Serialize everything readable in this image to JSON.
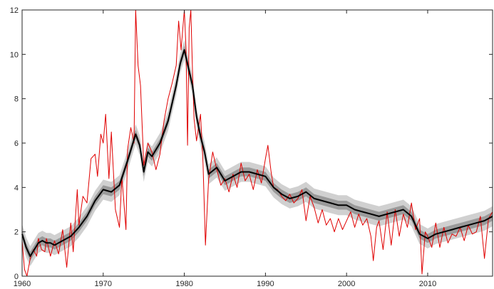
{
  "chart_data": {
    "type": "line",
    "title": "",
    "xlabel": "",
    "ylabel": "",
    "xlim": [
      1960,
      2018
    ],
    "ylim": [
      0,
      12
    ],
    "grid": false,
    "x_ticks": [
      1960,
      1970,
      1980,
      1990,
      2000,
      2010
    ],
    "y_ticks": [
      0,
      2,
      4,
      6,
      8,
      10,
      12
    ],
    "colors": {
      "raw": "#e00000",
      "trend": "#000000",
      "band_outer": "#d0d0d0",
      "band_inner": "#9a9a9a"
    },
    "series": [
      {
        "style": "trend-with-bands",
        "x": [
          1960,
          1960.5,
          1961,
          1961.5,
          1962,
          1962.5,
          1963,
          1963.5,
          1964,
          1965,
          1966,
          1967,
          1968,
          1969,
          1970,
          1971,
          1972,
          1973,
          1974,
          1974.5,
          1975,
          1975.5,
          1976,
          1977,
          1978,
          1979,
          1979.5,
          1980,
          1980.5,
          1981,
          1981.5,
          1982,
          1982.5,
          1983,
          1984,
          1985,
          1986,
          1987,
          1988,
          1989,
          1990,
          1991,
          1992,
          1993,
          1994,
          1995,
          1996,
          1997,
          1998,
          1999,
          2000,
          2001,
          2002,
          2003,
          2004,
          2005,
          2006,
          2007,
          2008,
          2009,
          2009.5,
          2010,
          2011,
          2012,
          2013,
          2014,
          2015,
          2016,
          2017,
          2018
        ],
        "y": [
          1.9,
          1.3,
          0.9,
          1.2,
          1.5,
          1.6,
          1.5,
          1.5,
          1.4,
          1.6,
          1.8,
          2.2,
          2.7,
          3.4,
          3.9,
          3.8,
          4.1,
          5.2,
          6.4,
          5.9,
          4.7,
          5.6,
          5.4,
          6.0,
          7.0,
          8.6,
          9.6,
          10.2,
          9.4,
          8.6,
          7.2,
          6.3,
          5.6,
          4.6,
          4.9,
          4.3,
          4.5,
          4.7,
          4.7,
          4.6,
          4.5,
          4.0,
          3.7,
          3.5,
          3.6,
          3.8,
          3.5,
          3.4,
          3.3,
          3.2,
          3.2,
          3.0,
          2.9,
          2.8,
          2.7,
          2.8,
          2.9,
          3.0,
          2.7,
          1.9,
          1.8,
          1.7,
          1.9,
          2.0,
          2.1,
          2.2,
          2.3,
          2.4,
          2.5,
          2.7
        ],
        "band_inner": 0.2,
        "band_outer": 0.45
      },
      {
        "style": "raw",
        "x": [
          1960,
          1960.3,
          1960.6,
          1961,
          1961.4,
          1961.8,
          1962,
          1962.4,
          1962.8,
          1963,
          1963.5,
          1964,
          1964.5,
          1965,
          1965.5,
          1966,
          1966.3,
          1966.8,
          1967,
          1967.5,
          1968,
          1968.5,
          1969,
          1969.3,
          1969.7,
          1970,
          1970.3,
          1970.7,
          1971,
          1971.5,
          1972,
          1972.3,
          1972.8,
          1973,
          1973.4,
          1973.8,
          1974,
          1974.3,
          1974.6,
          1975,
          1975.5,
          1976,
          1976.5,
          1977,
          1977.5,
          1978,
          1978.5,
          1979,
          1979.3,
          1979.6,
          1980,
          1980.2,
          1980.4,
          1980.6,
          1980.8,
          1981,
          1981.2,
          1981.5,
          1982,
          1982.3,
          1982.6,
          1983,
          1983.5,
          1984,
          1984.5,
          1985,
          1985.5,
          1986,
          1986.5,
          1987,
          1987.5,
          1988,
          1988.5,
          1989,
          1989.5,
          1990,
          1990.3,
          1990.7,
          1991,
          1991.5,
          1992,
          1992.5,
          1993,
          1993.5,
          1994,
          1994.5,
          1995,
          1995.5,
          1996,
          1996.5,
          1997,
          1997.5,
          1998,
          1998.5,
          1999,
          1999.5,
          2000,
          2000.5,
          2001,
          2001.5,
          2002,
          2002.5,
          2003,
          2003.3,
          2003.7,
          2004,
          2004.5,
          2005,
          2005.5,
          2006,
          2006.5,
          2007,
          2007.5,
          2008,
          2008.5,
          2009,
          2009.3,
          2009.7,
          2010,
          2010.5,
          2011,
          2011.5,
          2012,
          2012.5,
          2013,
          2013.5,
          2014,
          2014.5,
          2015,
          2015.5,
          2016,
          2016.5,
          2017,
          2017.5,
          2018
        ],
        "y": [
          1.6,
          0.3,
          0.0,
          0.8,
          1.2,
          0.9,
          1.7,
          1.2,
          1.1,
          1.7,
          0.9,
          1.6,
          1.0,
          2.1,
          0.4,
          2.4,
          1.1,
          3.9,
          2.3,
          3.6,
          3.3,
          5.3,
          5.5,
          4.5,
          6.4,
          6.0,
          7.3,
          4.4,
          6.5,
          3.0,
          2.2,
          4.5,
          2.1,
          5.7,
          6.7,
          6.0,
          12.0,
          9.5,
          8.6,
          5.0,
          6.0,
          5.6,
          4.8,
          5.5,
          7.0,
          8.0,
          8.7,
          9.5,
          11.5,
          10.2,
          12.0,
          10.3,
          5.9,
          11.2,
          12.0,
          9.3,
          7.1,
          6.1,
          7.3,
          5.1,
          1.4,
          4.4,
          5.6,
          4.8,
          4.1,
          4.4,
          3.8,
          4.6,
          4.0,
          5.1,
          4.3,
          4.6,
          3.9,
          4.8,
          4.2,
          5.3,
          5.9,
          4.7,
          4.0,
          3.9,
          3.6,
          3.4,
          3.7,
          3.3,
          3.5,
          3.9,
          2.5,
          3.6,
          3.1,
          2.4,
          3.0,
          2.3,
          2.6,
          2.0,
          2.6,
          2.1,
          2.5,
          2.9,
          2.2,
          2.8,
          2.3,
          2.6,
          1.8,
          0.7,
          2.2,
          2.5,
          1.2,
          2.9,
          1.4,
          3.0,
          1.8,
          2.8,
          2.2,
          3.3,
          2.1,
          2.6,
          0.1,
          2.0,
          1.8,
          1.3,
          2.4,
          1.3,
          2.2,
          1.5,
          1.9,
          1.8,
          2.2,
          1.6,
          2.3,
          1.9,
          2.0,
          2.7,
          0.8,
          2.6,
          2.9
        ]
      }
    ]
  }
}
